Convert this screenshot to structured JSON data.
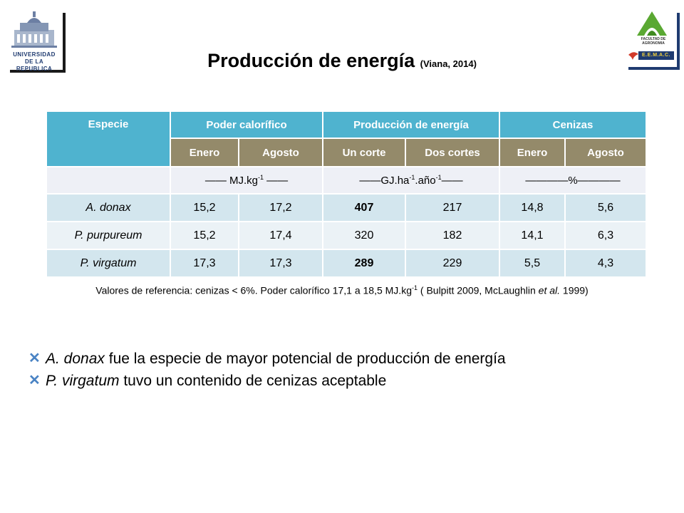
{
  "logos": {
    "left": {
      "line1": "UNIVERSIDAD",
      "line2": "DE LA REPUBLICA"
    },
    "right": {
      "line1": "FACULTAD DE",
      "line2": "AGRONOMIA",
      "badge": "E.E.M.A.C."
    }
  },
  "title": {
    "main": "Producción de energía",
    "cite": "(Viana, 2014)"
  },
  "table": {
    "header1": {
      "especie": "Especie",
      "poder": "Poder calorífico",
      "produccion": "Producción de energía",
      "cenizas": "Cenizas"
    },
    "header2": [
      "Enero",
      "Agosto",
      "Un corte",
      "Dos cortes",
      "Enero",
      "Agosto"
    ],
    "units": {
      "mj_pre": "—— MJ.kg",
      "mj_exp": "-1",
      "mj_post": " ——",
      "gj_pre": "——GJ.ha",
      "gj_exp1": "-1",
      "gj_mid": ".año",
      "gj_exp2": "-1",
      "gj_post": "——",
      "pct": "————%————"
    },
    "rows": [
      {
        "species": "A. donax",
        "values": [
          "15,2",
          "17,2",
          "407",
          "217",
          "14,8",
          "5,6"
        ]
      },
      {
        "species": "P. purpureum",
        "values": [
          "15,2",
          "17,4",
          "320",
          "182",
          "14,1",
          "6,3"
        ]
      },
      {
        "species": "P. virgatum",
        "values": [
          "17,3",
          "17,3",
          "289",
          "229",
          "5,5",
          "4,3"
        ]
      }
    ]
  },
  "note": {
    "pre": "Valores de referencia: cenizas < 6%. Poder calorífico 17,1 a 18,5 MJ.kg",
    "exp": "-1",
    "mid": " ( Bulpitt  2009, McLaughlin ",
    "etal": "et al.",
    "post": " 1999)"
  },
  "bullets": [
    {
      "species": "A. donax",
      "text": " fue la especie de mayor potencial de producción de energía"
    },
    {
      "species": "P. virgatum",
      "text": " tuvo un contenido de cenizas aceptable"
    }
  ],
  "icons": {
    "bullet": "x-mark-icon"
  },
  "colors": {
    "header1": "#4fb3cf",
    "header2": "#948a6a",
    "row_dark": "#d3e6ee",
    "row_light": "#ebf2f6",
    "units_row": "#eef0f6",
    "bullet": "#4a83c4",
    "navy": "#1f3b70"
  }
}
